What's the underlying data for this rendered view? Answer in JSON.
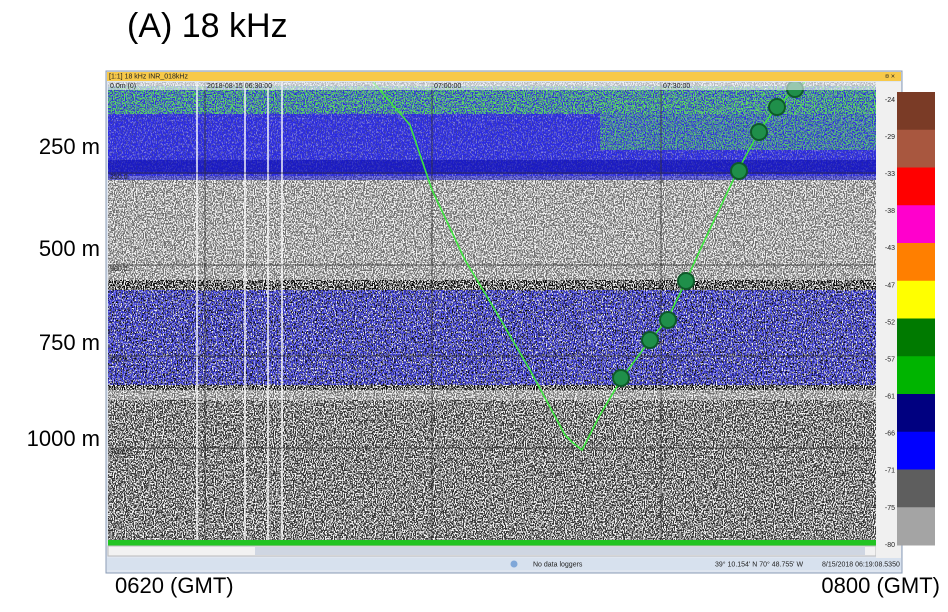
{
  "title": "(A) 18 kHz",
  "depth_labels": [
    "250 m",
    "500 m",
    "750 m",
    "1000 m"
  ],
  "time_labels": [
    "0620 (GMT)",
    "0800 (GMT)"
  ],
  "window": {
    "title": "[1:1] 18 kHz INR_018kHz",
    "top_labels": [
      "0.0m (0)",
      "2018-08-15 06:30:00",
      "07:00:00",
      "07:30:00"
    ],
    "depth_grid_labels": [
      "250.0",
      "500.0",
      "750.0",
      "1000.0"
    ],
    "colorbar": {
      "labels": [
        "-24",
        "-29",
        "-33",
        "-38",
        "-43",
        "-47",
        "-52",
        "-57",
        "-61",
        "-66",
        "-71",
        "-75",
        "-80"
      ],
      "colors": [
        "#7a3b26",
        "#a8573f",
        "#ff0000",
        "#ff00cc",
        "#ff7f00",
        "#ffff00",
        "#007a00",
        "#00b400",
        "#000080",
        "#0000ff",
        "#5e5e5e",
        "#a4a4a4"
      ]
    },
    "status": [
      "No data loggers",
      "39° 10.154' N 70° 48.755' W",
      "8/15/2018 06:19:08.5350"
    ]
  }
}
